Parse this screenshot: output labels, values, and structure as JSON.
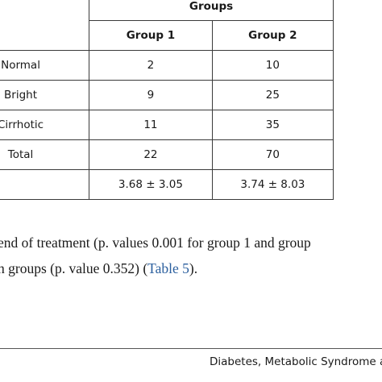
{
  "table": {
    "groups_header": "Groups",
    "columns": [
      "Group 1",
      "Group 2"
    ],
    "rows": [
      {
        "label": "Normal",
        "group1": "2",
        "group2": "10"
      },
      {
        "label": "Bright",
        "group1": "9",
        "group2": "25"
      },
      {
        "label": "Cirrhotic",
        "group1": "11",
        "group2": "35"
      },
      {
        "label": "Total",
        "group1": "22",
        "group2": "70"
      },
      {
        "label": "",
        "group1": "3.68 ± 3.05",
        "group2": "3.74 ± 8.03"
      }
    ]
  },
  "body_text": {
    "line1": "end of treatment (p. values 0.001 for group 1 and group",
    "line2_prefix": "h groups (p. value 0.352) (",
    "line2_link": "Table 5",
    "line2_suffix": ")."
  },
  "footer": {
    "journal": "Diabetes, Metabolic Syndrome and"
  }
}
